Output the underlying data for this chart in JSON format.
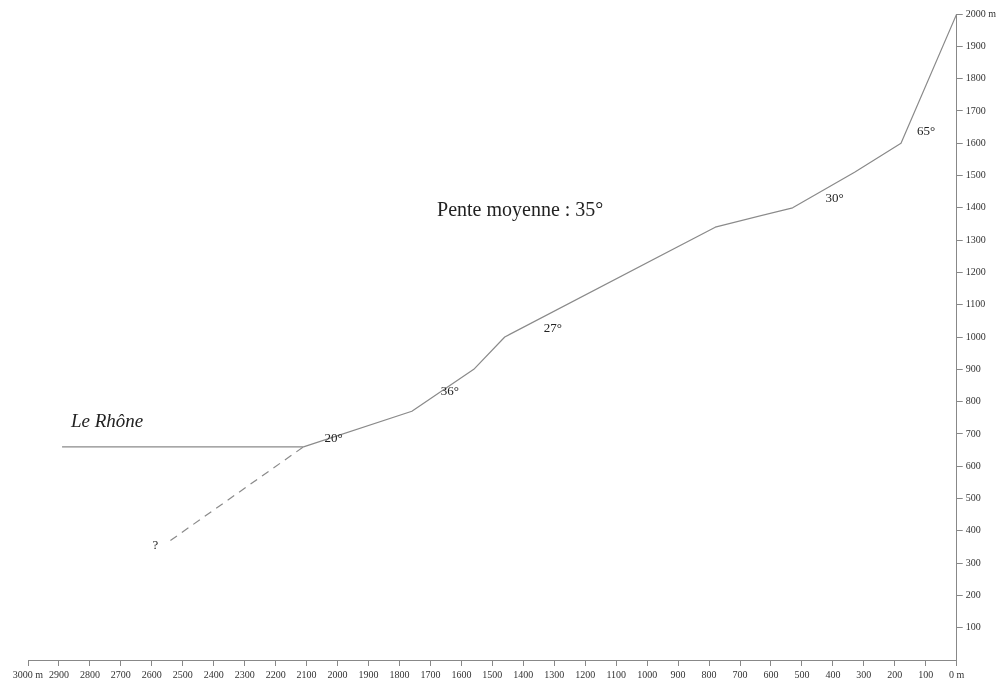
{
  "chart_data": {
    "type": "line",
    "xlim": [
      3000,
      0
    ],
    "xticks": [
      {
        "value": 3000,
        "label": "3000 m"
      },
      {
        "value": 2900,
        "label": "2900"
      },
      {
        "value": 2800,
        "label": "2800"
      },
      {
        "value": 2700,
        "label": "2700"
      },
      {
        "value": 2600,
        "label": "2600"
      },
      2500,
      {
        "value": 2400,
        "label": "2400"
      },
      {
        "value": 2300,
        "label": "2300"
      },
      {
        "value": 2200,
        "label": "2200"
      },
      {
        "value": 2100,
        "label": "2100"
      },
      2000,
      {
        "value": 1900,
        "label": "1900"
      },
      {
        "value": 1800,
        "label": "1800"
      },
      {
        "value": 1700,
        "label": "1700"
      },
      {
        "value": 1600,
        "label": "1600"
      },
      1500,
      {
        "value": 1400,
        "label": "1400"
      },
      {
        "value": 1300,
        "label": "1300"
      },
      {
        "value": 1200,
        "label": "1200"
      },
      {
        "value": 1100,
        "label": "1100"
      },
      1000,
      {
        "value": 900,
        "label": "900"
      },
      {
        "value": 800,
        "label": "800"
      },
      {
        "value": 700,
        "label": "700"
      },
      {
        "value": 600,
        "label": "600"
      },
      500,
      {
        "value": 400,
        "label": "400"
      },
      {
        "value": 300,
        "label": "300"
      },
      {
        "value": 200,
        "label": "200"
      },
      {
        "value": 100,
        "label": "100"
      },
      {
        "value": 0,
        "label": "0 m"
      }
    ],
    "ylim": [
      0,
      2000
    ],
    "yticks": [
      100,
      200,
      300,
      400,
      500,
      600,
      700,
      800,
      900,
      1000,
      1100,
      1200,
      1300,
      1400,
      1500,
      1600,
      1700,
      1800,
      1900,
      {
        "value": 2000,
        "label": "2000 m"
      }
    ],
    "grid": false,
    "legend": false,
    "marker": "none",
    "series": [
      {
        "color": "#8a8a8a",
        "line_style": "solid",
        "x": [
          2890,
          2110,
          1760,
          1560,
          1460,
          780,
          530,
          330,
          180,
          0
        ],
        "values": [
          660,
          660,
          770,
          900,
          1000,
          1340,
          1400,
          1510,
          1600,
          2000
        ]
      },
      {
        "color": "#8a8a8a",
        "line_style": "dashed",
        "x": [
          2540,
          2110
        ],
        "values": [
          370,
          660
        ]
      }
    ],
    "annotations": [
      "Pente moyenne : 35°",
      {
        "text": "Le Rhône",
        "x": 2890,
        "y": 660
      },
      {
        "text": "?",
        "x": 2540,
        "y": 370
      },
      {
        "text": "20°",
        "x": 2110,
        "y": 660
      },
      {
        "text": "36°",
        "x": 1760,
        "y": 770
      },
      {
        "text": "27°",
        "x": 1460,
        "y": 1000
      },
      {
        "text": "30°",
        "x": 530,
        "y": 1400
      },
      {
        "text": "65°",
        "x": 180,
        "y": 1600
      }
    ]
  }
}
